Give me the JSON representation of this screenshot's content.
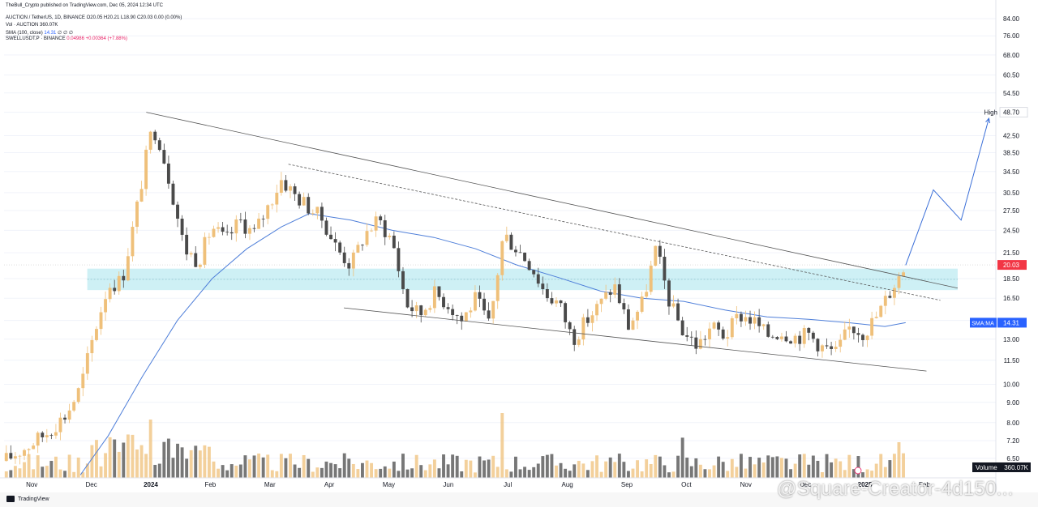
{
  "header": {
    "published": "TheBull_Crypto published on TradingView.com, Dec 05, 2024 12:34 UTC",
    "symbol_line": "AUCTION / TetherUS, 1D, BINANCE",
    "ohlc": "O20.05 H20.21 L18.90 C20.03 0.00 (0.00%)",
    "vol_label": "Vol · AUCTION",
    "vol_value": "360.07K",
    "sma_label": "SMA (100, close)",
    "sma_value": "14.31",
    "sma_flags": "∅ ∅ ∅",
    "compare_label": "SWELLUSDT.P · BINANCE",
    "compare_value": "0.04986 +0.00364 (+7.88%)"
  },
  "footer": {
    "brand": "TradingView"
  },
  "watermark": "@Square-Creator-4d150...",
  "colors": {
    "up": "#efc07a",
    "down": "#4a4a4a",
    "sma": "#4f7fd9",
    "zone": "#bdebf2",
    "projection": "#3b6fd8",
    "last_price_bg": "#f23645",
    "sma_label_bg": "#2962ff"
  },
  "chart_data": {
    "type": "candlestick",
    "y_scale": "log",
    "ylim": [
      5.8,
      86
    ],
    "y_ticks": [
      "84.00",
      "76.00",
      "68.00",
      "60.50",
      "54.50",
      "48.70",
      "42.50",
      "38.50",
      "34.50",
      "30.50",
      "27.50",
      "24.50",
      "21.50",
      "18.50",
      "16.50",
      "14.50",
      "13.00",
      "11.50",
      "10.00",
      "9.00",
      "8.00",
      "7.20",
      "6.50"
    ],
    "x_labels": [
      "Nov",
      "Dec",
      "2024",
      "Feb",
      "Mar",
      "Apr",
      "May",
      "Jun",
      "Jul",
      "Aug",
      "Sep",
      "Oct",
      "Nov",
      "Dec",
      "2025",
      "Feb"
    ],
    "high_marker": {
      "label": "High",
      "value": 48.7
    },
    "last_price": {
      "value": 20.03,
      "label": "20.03"
    },
    "sma_marker": {
      "label": "SMA:MA",
      "value": 14.31
    },
    "volume_label": {
      "label": "Volume",
      "value": "360.07K"
    },
    "support_zone": [
      17.3,
      19.6
    ],
    "price_path": [
      {
        "t": 0,
        "p": 6.4
      },
      {
        "t": 0.03,
        "p": 6.9
      },
      {
        "t": 0.06,
        "p": 7.5
      },
      {
        "t": 0.09,
        "p": 8.4
      },
      {
        "t": 0.11,
        "p": 9.8
      },
      {
        "t": 0.13,
        "p": 13.5
      },
      {
        "t": 0.15,
        "p": 17.8
      },
      {
        "t": 0.17,
        "p": 18.3
      },
      {
        "t": 0.19,
        "p": 27
      },
      {
        "t": 0.21,
        "p": 42
      },
      {
        "t": 0.22,
        "p": 44
      },
      {
        "t": 0.24,
        "p": 32
      },
      {
        "t": 0.26,
        "p": 22
      },
      {
        "t": 0.28,
        "p": 20.5
      },
      {
        "t": 0.3,
        "p": 25
      },
      {
        "t": 0.32,
        "p": 23
      },
      {
        "t": 0.34,
        "p": 26
      },
      {
        "t": 0.36,
        "p": 24
      },
      {
        "t": 0.38,
        "p": 28
      },
      {
        "t": 0.4,
        "p": 33
      },
      {
        "t": 0.42,
        "p": 30
      },
      {
        "t": 0.44,
        "p": 28
      },
      {
        "t": 0.46,
        "p": 26
      },
      {
        "t": 0.48,
        "p": 22
      },
      {
        "t": 0.5,
        "p": 20
      },
      {
        "t": 0.52,
        "p": 24
      },
      {
        "t": 0.54,
        "p": 26
      },
      {
        "t": 0.56,
        "p": 23
      },
      {
        "t": 0.58,
        "p": 16
      },
      {
        "t": 0.6,
        "p": 15
      },
      {
        "t": 0.62,
        "p": 17
      },
      {
        "t": 0.64,
        "p": 16
      },
      {
        "t": 0.66,
        "p": 14.5
      },
      {
        "t": 0.68,
        "p": 16.5
      },
      {
        "t": 0.7,
        "p": 14
      },
      {
        "t": 0.72,
        "p": 24
      },
      {
        "t": 0.74,
        "p": 22
      },
      {
        "t": 0.76,
        "p": 20
      },
      {
        "t": 0.78,
        "p": 17
      },
      {
        "t": 0.8,
        "p": 16
      },
      {
        "t": 0.82,
        "p": 13
      },
      {
        "t": 0.84,
        "p": 14.5
      },
      {
        "t": 0.86,
        "p": 16
      },
      {
        "t": 0.88,
        "p": 17.8
      },
      {
        "t": 0.9,
        "p": 14
      },
      {
        "t": 0.92,
        "p": 16
      },
      {
        "t": 0.94,
        "p": 22
      },
      {
        "t": 0.96,
        "p": 16
      },
      {
        "t": 0.98,
        "p": 13.5
      },
      {
        "t": 1.0,
        "p": 12.5
      },
      {
        "t": 1.02,
        "p": 14
      },
      {
        "t": 1.04,
        "p": 13.2
      },
      {
        "t": 1.06,
        "p": 15
      },
      {
        "t": 1.08,
        "p": 14.5
      },
      {
        "t": 1.1,
        "p": 13.3
      },
      {
        "t": 1.12,
        "p": 13.6
      },
      {
        "t": 1.14,
        "p": 13.2
      },
      {
        "t": 1.16,
        "p": 13.4
      },
      {
        "t": 1.18,
        "p": 12.4
      },
      {
        "t": 1.2,
        "p": 12
      },
      {
        "t": 1.22,
        "p": 14
      },
      {
        "t": 1.24,
        "p": 13.5
      },
      {
        "t": 1.26,
        "p": 15
      },
      {
        "t": 1.28,
        "p": 17.5
      },
      {
        "t": 1.3,
        "p": 20
      }
    ],
    "sma_path": [
      {
        "t": 0.11,
        "p": 5.9
      },
      {
        "t": 0.15,
        "p": 7.4
      },
      {
        "t": 0.2,
        "p": 10.5
      },
      {
        "t": 0.25,
        "p": 14.5
      },
      {
        "t": 0.3,
        "p": 18.5
      },
      {
        "t": 0.35,
        "p": 22
      },
      {
        "t": 0.4,
        "p": 25
      },
      {
        "t": 0.44,
        "p": 27
      },
      {
        "t": 0.5,
        "p": 26
      },
      {
        "t": 0.56,
        "p": 24.5
      },
      {
        "t": 0.62,
        "p": 23.5
      },
      {
        "t": 0.68,
        "p": 22
      },
      {
        "t": 0.74,
        "p": 20
      },
      {
        "t": 0.8,
        "p": 18.6
      },
      {
        "t": 0.86,
        "p": 17.2
      },
      {
        "t": 0.92,
        "p": 16.5
      },
      {
        "t": 0.98,
        "p": 16.2
      },
      {
        "t": 1.04,
        "p": 15.4
      },
      {
        "t": 1.1,
        "p": 14.8
      },
      {
        "t": 1.16,
        "p": 14.6
      },
      {
        "t": 1.22,
        "p": 14.3
      },
      {
        "t": 1.27,
        "p": 14.0
      },
      {
        "t": 1.3,
        "p": 14.31
      }
    ],
    "trendlines": [
      {
        "name": "upper-resistance",
        "style": "solid",
        "from": {
          "t": 0.205,
          "p": 48.7
        },
        "to": {
          "t": 1.375,
          "p": 17.5
        }
      },
      {
        "name": "inner-resistance",
        "style": "dashed",
        "from": {
          "t": 0.41,
          "p": 36
        },
        "to": {
          "t": 1.35,
          "p": 16.3
        }
      },
      {
        "name": "lower-support",
        "style": "solid",
        "from": {
          "t": 0.49,
          "p": 15.6
        },
        "to": {
          "t": 1.33,
          "p": 10.8
        }
      }
    ],
    "projection": [
      {
        "t": 1.3,
        "p": 20
      },
      {
        "t": 1.34,
        "p": 31
      },
      {
        "t": 1.38,
        "p": 26
      },
      {
        "t": 1.42,
        "p": 47
      }
    ],
    "volume_spikes": [
      {
        "t": 0.21,
        "v": 0.9
      },
      {
        "t": 0.72,
        "v": 1.0
      },
      {
        "t": 0.98,
        "v": 0.62
      },
      {
        "t": 1.29,
        "v": 0.55
      }
    ]
  }
}
